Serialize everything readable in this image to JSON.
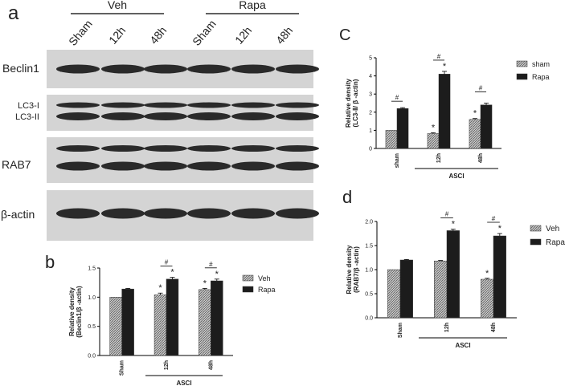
{
  "colors": {
    "hatch": "#9a9a9a",
    "solid": "#1c1c1c",
    "axis": "#000000",
    "blot_bg": "#d4d4d4",
    "band": "#2a2a2a"
  },
  "panel_a": {
    "letter": "a",
    "groups": [
      "Veh",
      "Rapa"
    ],
    "lanes": [
      "Sham",
      "12h",
      "48h",
      "Sham",
      "12h",
      "48h"
    ],
    "rows": [
      "Beclin1",
      "LC3-I",
      "LC3-II",
      "RAB7",
      "β-actin"
    ]
  },
  "chart_data": [
    {
      "panel": "b",
      "type": "bar",
      "categories": [
        "Sham",
        "12h",
        "48h"
      ],
      "group_label": "ASCI",
      "series": [
        {
          "name": "Veh",
          "values": [
            1.0,
            1.04,
            1.13
          ],
          "errors": [
            0.0,
            0.03,
            0.02
          ],
          "pattern": "hatch"
        },
        {
          "name": "Rapa",
          "values": [
            1.14,
            1.31,
            1.28
          ],
          "errors": [
            0.01,
            0.03,
            0.03
          ],
          "pattern": "solid"
        }
      ],
      "ylabel_lines": [
        "Relative density",
        "(Beclin1/β -actin)"
      ],
      "ylim": [
        0,
        1.5
      ],
      "yticks": [
        "0.0",
        "0.5",
        "1.0",
        "1.5"
      ],
      "stars": [
        [
          1,
          0
        ],
        [
          1,
          1
        ],
        [
          2,
          0
        ],
        [
          2,
          1
        ]
      ],
      "hashes": [
        1,
        2
      ],
      "legend": "right"
    },
    {
      "panel": "C",
      "type": "bar",
      "categories": [
        "sham",
        "12h",
        "48h"
      ],
      "group_label": "ASCI",
      "series": [
        {
          "name": "sham",
          "values": [
            1.0,
            0.82,
            1.6
          ],
          "errors": [
            0.0,
            0.05,
            0.05
          ],
          "pattern": "hatch"
        },
        {
          "name": "Rapa",
          "values": [
            2.2,
            4.1,
            2.4
          ],
          "errors": [
            0.05,
            0.15,
            0.1
          ],
          "pattern": "solid"
        }
      ],
      "ylabel_lines": [
        "Relative density",
        "(LC3-Ⅱ/ β -actin)"
      ],
      "ylim": [
        0,
        5
      ],
      "yticks": [
        "0",
        "1",
        "2",
        "3",
        "4",
        "5"
      ],
      "stars": [
        [
          1,
          0
        ],
        [
          1,
          1
        ],
        [
          2,
          0
        ]
      ],
      "hashes": [
        0,
        1,
        2
      ],
      "legend": "right"
    },
    {
      "panel": "d",
      "type": "bar",
      "categories": [
        "Sham",
        "12h",
        "48h"
      ],
      "group_label": "ASCI",
      "series": [
        {
          "name": "Veh",
          "values": [
            1.0,
            1.18,
            0.8
          ],
          "errors": [
            0.0,
            0.01,
            0.02
          ],
          "pattern": "hatch"
        },
        {
          "name": "Rapa",
          "values": [
            1.2,
            1.81,
            1.7
          ],
          "errors": [
            0.01,
            0.03,
            0.05
          ],
          "pattern": "solid"
        }
      ],
      "ylabel_lines": [
        "Relative density",
        "(RAB7/β -actin)"
      ],
      "ylim": [
        0,
        2.0
      ],
      "yticks": [
        "0.0",
        "0.5",
        "1.0",
        "1.5",
        "2.0"
      ],
      "stars": [
        [
          1,
          1
        ],
        [
          2,
          0
        ],
        [
          2,
          1
        ]
      ],
      "hashes": [
        1,
        2
      ],
      "legend": "right"
    }
  ],
  "marks": {
    "star": "*",
    "hash": "#"
  }
}
